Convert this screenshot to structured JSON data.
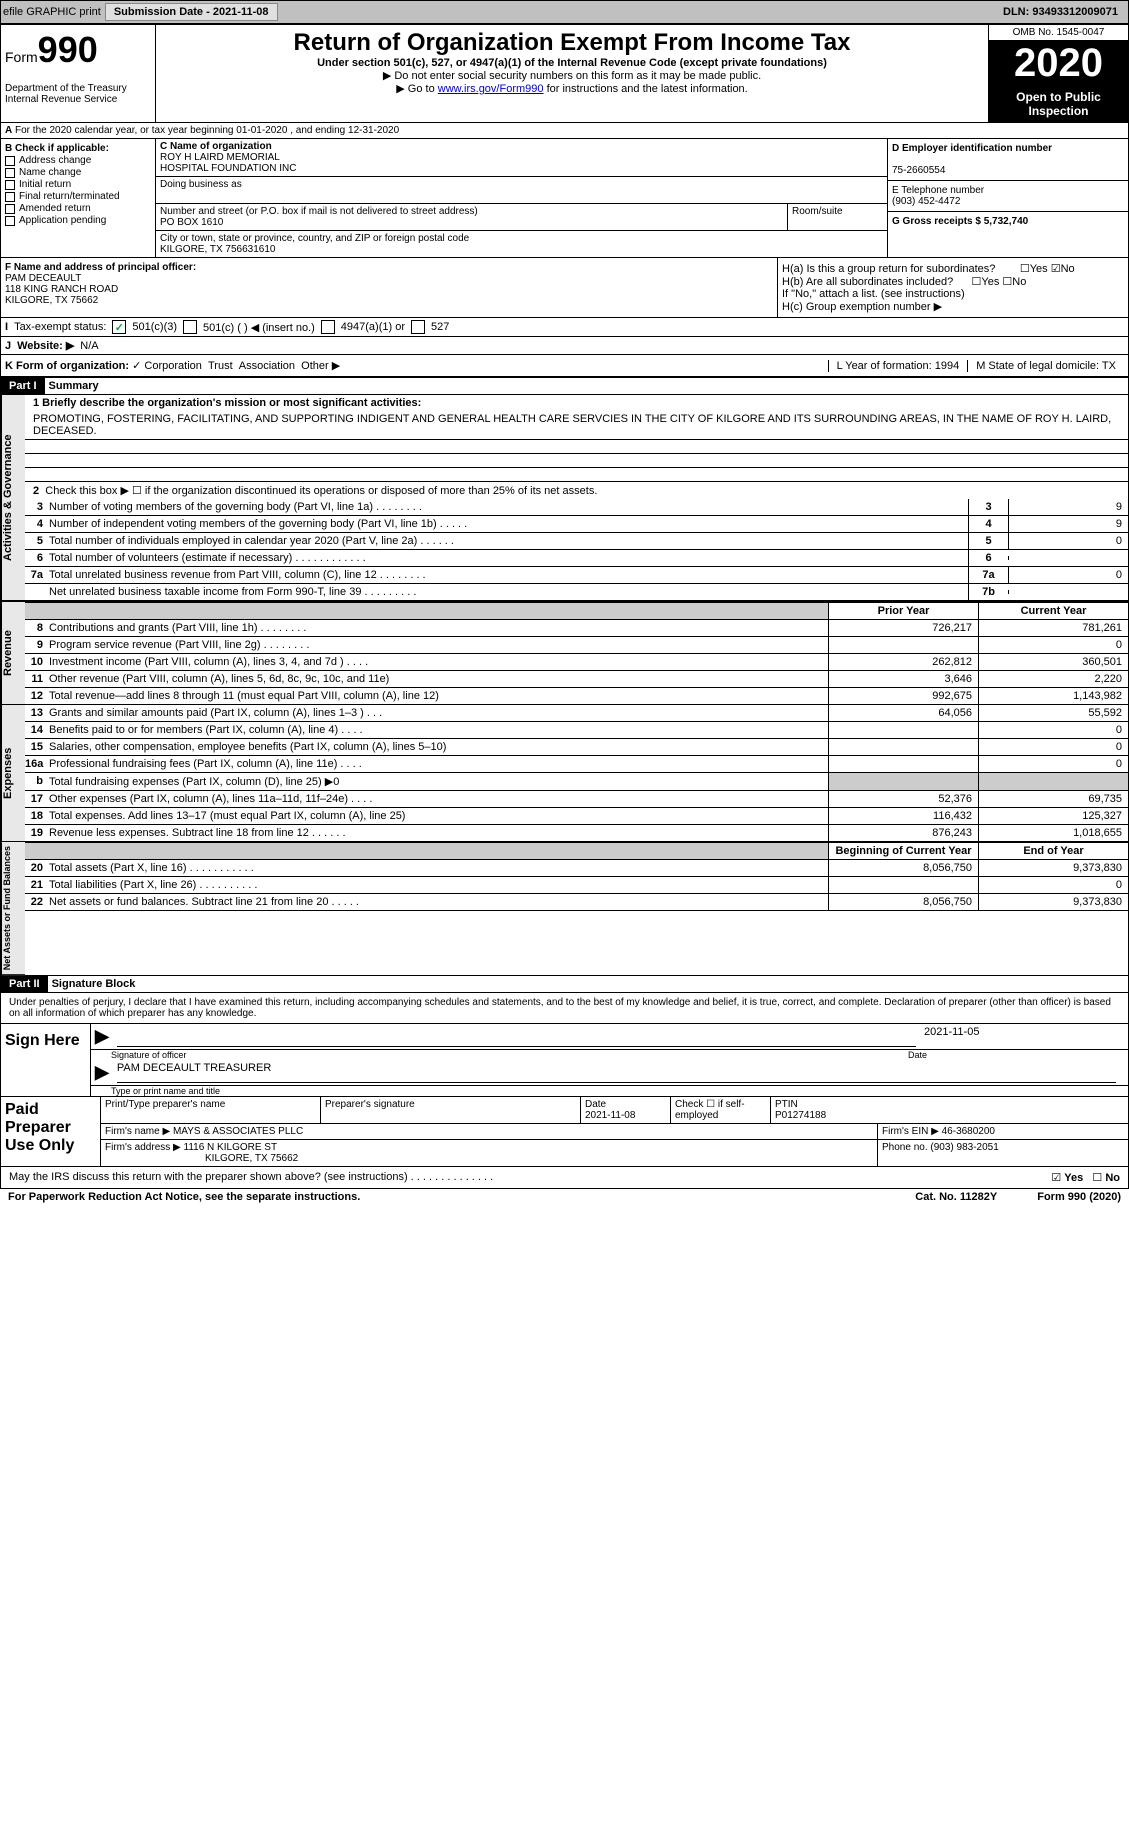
{
  "topbar": {
    "efile": "efile GRAPHIC print",
    "sub_label": "Submission Date - 2021-11-08",
    "dln": "DLN: 93493312009071"
  },
  "header": {
    "form_prefix": "Form",
    "form_num": "990",
    "dept": "Department of the Treasury\nInternal Revenue Service",
    "title": "Return of Organization Exempt From Income Tax",
    "subtitle": "Under section 501(c), 527, or 4947(a)(1) of the Internal Revenue Code (except private foundations)",
    "note1": "▶ Do not enter social security numbers on this form as it may be made public.",
    "note2_pre": "▶ Go to ",
    "note2_link": "www.irs.gov/Form990",
    "note2_post": " for instructions and the latest information.",
    "omb": "OMB No. 1545-0047",
    "year": "2020",
    "open": "Open to Public Inspection"
  },
  "row_a": "For the 2020 calendar year, or tax year beginning 01-01-2020    , and ending 12-31-2020",
  "checkboxes": {
    "header": "B Check if applicable:",
    "items": [
      "Address change",
      "Name change",
      "Initial return",
      "Final return/terminated",
      "Amended return",
      "Application pending"
    ]
  },
  "org": {
    "c_label": "C Name of organization",
    "name": "ROY H LAIRD MEMORIAL\nHOSPITAL FOUNDATION INC",
    "dba_label": "Doing business as",
    "dba": "",
    "street_label": "Number and street (or P.O. box if mail is not delivered to street address)",
    "street": "PO BOX 1610",
    "room_label": "Room/suite",
    "city_label": "City or town, state or province, country, and ZIP or foreign postal code",
    "city": "KILGORE, TX  756631610"
  },
  "d_col": {
    "d_label": "D Employer identification number",
    "d_val": "75-2660554",
    "e_label": "E Telephone number",
    "e_val": "(903) 452-4472",
    "g_label": "G Gross receipts $ 5,732,740"
  },
  "officer": {
    "f_label": "F Name and address of principal officer:",
    "name": "PAM DECEAULT",
    "addr1": "118 KING RANCH ROAD",
    "addr2": "KILGORE, TX  75662"
  },
  "h_section": {
    "ha": "H(a)  Is this a group return for subordinates?",
    "hb": "H(b)  Are all subordinates included?",
    "hb_note": "If \"No,\" attach a list. (see instructions)",
    "hc": "H(c)  Group exemption number ▶"
  },
  "row_i": {
    "label": "Tax-exempt status:",
    "opts": [
      "501(c)(3)",
      "501(c) (   ) ◀ (insert no.)",
      "4947(a)(1) or",
      "527"
    ]
  },
  "row_j": {
    "label": "Website: ▶",
    "val": "N/A"
  },
  "row_k": {
    "label": "K Form of organization:",
    "opts": [
      "Corporation",
      "Trust",
      "Association",
      "Other ▶"
    ],
    "l": "L Year of formation: 1994",
    "m": "M State of legal domicile: TX"
  },
  "part1": {
    "label": "Part I",
    "title": "Summary",
    "mission_label": "1  Briefly describe the organization's mission or most significant activities:",
    "mission": "PROMOTING, FOSTERING, FACILITATING, AND SUPPORTING INDIGENT AND GENERAL HEALTH CARE SERVCIES IN THE CITY OF KILGORE AND ITS SURROUNDING AREAS, IN THE NAME OF ROY H. LAIRD, DECEASED.",
    "line2": "Check this box ▶ ☐ if the organization discontinued its operations or disposed of more than 25% of its net assets."
  },
  "gov_rows": [
    {
      "n": "3",
      "lbl": "Number of voting members of the governing body (Part VI, line 1a)   .    .    .    .    .    .    .    .",
      "box": "3",
      "val": "9"
    },
    {
      "n": "4",
      "lbl": "Number of independent voting members of the governing body (Part VI, line 1b)   .    .    .    .    .",
      "box": "4",
      "val": "9"
    },
    {
      "n": "5",
      "lbl": "Total number of individuals employed in calendar year 2020 (Part V, line 2a)   .    .    .    .    .    .",
      "box": "5",
      "val": "0"
    },
    {
      "n": "6",
      "lbl": "Total number of volunteers (estimate if necessary)   .    .    .    .    .    .    .    .    .    .    .    .",
      "box": "6",
      "val": ""
    },
    {
      "n": "7a",
      "lbl": "Total unrelated business revenue from Part VIII, column (C), line 12   .    .    .    .    .    .    .    .",
      "box": "7a",
      "val": "0"
    },
    {
      "n": "",
      "lbl": "Net unrelated business taxable income from Form 990-T, line 39   .    .    .    .    .    .    .    .    .",
      "box": "7b",
      "val": ""
    }
  ],
  "fin_headers": {
    "a": "Prior Year",
    "b": "Current Year"
  },
  "revenue_rows": [
    {
      "n": "8",
      "lbl": "Contributions and grants (Part VIII, line 1h)   .    .    .    .    .    .    .    .",
      "a": "726,217",
      "b": "781,261"
    },
    {
      "n": "9",
      "lbl": "Program service revenue (Part VIII, line 2g)   .    .    .    .    .    .    .    .",
      "a": "",
      "b": "0"
    },
    {
      "n": "10",
      "lbl": "Investment income (Part VIII, column (A), lines 3, 4, and 7d )   .    .    .    .",
      "a": "262,812",
      "b": "360,501"
    },
    {
      "n": "11",
      "lbl": "Other revenue (Part VIII, column (A), lines 5, 6d, 8c, 9c, 10c, and 11e)",
      "a": "3,646",
      "b": "2,220"
    },
    {
      "n": "12",
      "lbl": "Total revenue—add lines 8 through 11 (must equal Part VIII, column (A), line 12)",
      "a": "992,675",
      "b": "1,143,982"
    }
  ],
  "expense_rows": [
    {
      "n": "13",
      "lbl": "Grants and similar amounts paid (Part IX, column (A), lines 1–3 )   .    .    .",
      "a": "64,056",
      "b": "55,592"
    },
    {
      "n": "14",
      "lbl": "Benefits paid to or for members (Part IX, column (A), line 4)   .    .    .    .",
      "a": "",
      "b": "0"
    },
    {
      "n": "15",
      "lbl": "Salaries, other compensation, employee benefits (Part IX, column (A), lines 5–10)",
      "a": "",
      "b": "0"
    },
    {
      "n": "16a",
      "lbl": "Professional fundraising fees (Part IX, column (A), line 11e)   .    .    .    .",
      "a": "",
      "b": "0"
    },
    {
      "n": "b",
      "lbl": "Total fundraising expenses (Part IX, column (D), line 25) ▶0",
      "a": "shade",
      "b": "shade"
    },
    {
      "n": "17",
      "lbl": "Other expenses (Part IX, column (A), lines 11a–11d, 11f–24e)   .    .    .    .",
      "a": "52,376",
      "b": "69,735"
    },
    {
      "n": "18",
      "lbl": "Total expenses. Add lines 13–17 (must equal Part IX, column (A), line 25)",
      "a": "116,432",
      "b": "125,327"
    },
    {
      "n": "19",
      "lbl": "Revenue less expenses. Subtract line 18 from line 12   .    .    .    .    .    .",
      "a": "876,243",
      "b": "1,018,655"
    }
  ],
  "net_headers": {
    "a": "Beginning of Current Year",
    "b": "End of Year"
  },
  "net_rows": [
    {
      "n": "20",
      "lbl": "Total assets (Part X, line 16)   .    .    .    .    .    .    .    .    .    .    .",
      "a": "8,056,750",
      "b": "9,373,830"
    },
    {
      "n": "21",
      "lbl": "Total liabilities (Part X, line 26)   .    .    .    .    .    .    .    .    .    .",
      "a": "",
      "b": "0"
    },
    {
      "n": "22",
      "lbl": "Net assets or fund balances. Subtract line 21 from line 20   .    .    .    .    .",
      "a": "8,056,750",
      "b": "9,373,830"
    }
  ],
  "part2": {
    "label": "Part II",
    "title": "Signature Block"
  },
  "penalty": "Under penalties of perjury, I declare that I have examined this return, including accompanying schedules and statements, and to the best of my knowledge and belief, it is true, correct, and complete. Declaration of preparer (other than officer) is based on all information of which preparer has any knowledge.",
  "sign": {
    "left": "Sign Here",
    "sig_label": "Signature of officer",
    "date": "2021-11-05",
    "date_label": "Date",
    "name": "PAM DECEAULT TREASURER",
    "name_label": "Type or print name and title"
  },
  "paid": {
    "left": "Paid Preparer Use Only",
    "h1": "Print/Type preparer's name",
    "h2": "Preparer's signature",
    "h3": "Date",
    "h3v": "2021-11-08",
    "h4": "Check ☐ if self-employed",
    "h5": "PTIN",
    "h5v": "P01274188",
    "firm_label": "Firm's name    ▶",
    "firm": "MAYS & ASSOCIATES PLLC",
    "ein_label": "Firm's EIN ▶",
    "ein": "46-3680200",
    "addr_label": "Firm's address ▶",
    "addr": "1116 N KILGORE ST",
    "addr2": "KILGORE, TX  75662",
    "phone_label": "Phone no.",
    "phone": "(903) 983-2051"
  },
  "discuss": "May the IRS discuss this return with the preparer shown above? (see instructions)   .    .    .    .    .    .    .    .    .    .    .    .    .    .",
  "footer": {
    "left": "For Paperwork Reduction Act Notice, see the separate instructions.",
    "cat": "Cat. No. 11282Y",
    "right": "Form 990 (2020)"
  }
}
